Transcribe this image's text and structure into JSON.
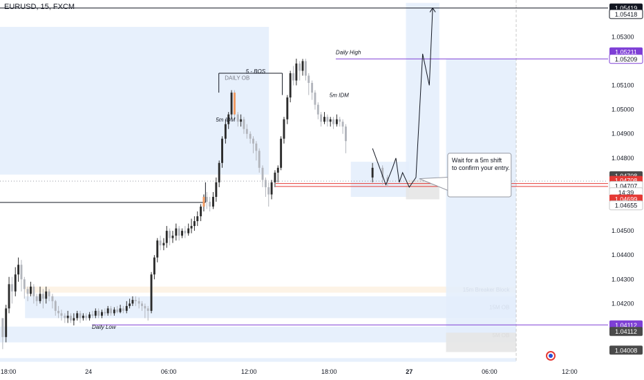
{
  "header": {
    "symbol_line": "EURUSD, 15, FXCM"
  },
  "colors": {
    "up": "#2b2b2b",
    "down": "#b2b5bc",
    "orange": "#f39a60",
    "zone_blue": "#e3edfb",
    "zone_orange": "#fdf1e2",
    "zone_grey": "#e6e6e6",
    "purple": "#7e3fd6",
    "red": "#e53935",
    "black": "#131722",
    "grey_text": "#787b86"
  },
  "chart_data": {
    "type": "candlestick",
    "x_axis": {
      "ticks": [
        {
          "label": "18:00",
          "t": -24
        },
        {
          "label": "24",
          "t": 0
        },
        {
          "label": "06:00",
          "t": 24
        },
        {
          "label": "12:00",
          "t": 48
        },
        {
          "label": "18:00",
          "t": 72
        },
        {
          "label": "27",
          "t": 96
        },
        {
          "label": "06:00",
          "t": 120
        },
        {
          "label": "12:00",
          "t": 144
        }
      ],
      "range": [
        -26.5,
        155.5
      ],
      "bar_interval": "15"
    },
    "y_axis": {
      "ticks": [
        "1.04000",
        "1.04100",
        "1.04200",
        "1.04300",
        "1.04400",
        "1.04500",
        "1.04600",
        "1.04700",
        "1.04800",
        "1.04900",
        "1.05000",
        "1.05100",
        "1.05200",
        "1.05300",
        "1.05400"
      ],
      "range": [
        1.03956,
        1.05452
      ]
    },
    "price_tags": [
      {
        "label": "1.05419",
        "price": 1.05419,
        "bg": "#131722",
        "fg": "#ffffff"
      },
      {
        "label": "1.05418",
        "price": 1.05394,
        "bg": "#ffffff",
        "fg": "#131722",
        "border": "#131722"
      },
      {
        "label": "1.05211",
        "price": 1.05238,
        "bg": "#7e3fd6",
        "fg": "#ffffff"
      },
      {
        "label": "1.05209",
        "price": 1.05209,
        "bg": "#ffffff",
        "fg": "#131722",
        "border": "#7e3fd6"
      },
      {
        "label": "1.04708",
        "price": 1.04727,
        "bg": "#4a4a4a",
        "fg": "#ffffff"
      },
      {
        "label": "1.04708",
        "price": 1.04708,
        "bg": "#e53935",
        "fg": "#ffffff"
      },
      {
        "label": "1.04707",
        "price": 1.04685,
        "bg": "#ffffff",
        "fg": "#131722",
        "border": "#c8c8c8"
      },
      {
        "label": "14:39",
        "price": 1.04659,
        "bg": "#ffffff",
        "fg": "#131722",
        "border": "#c8c8c8"
      },
      {
        "label": "1.04699",
        "price": 1.04631,
        "bg": "#e53935",
        "fg": "#ffffff"
      },
      {
        "label": "1.04655",
        "price": 1.04605,
        "bg": "#ffffff",
        "fg": "#131722",
        "border": "#c8c8c8"
      },
      {
        "label": "1.04112",
        "price": 1.04112,
        "bg": "#7e3fd6",
        "fg": "#ffffff"
      },
      {
        "label": "1.04112",
        "price": 1.04085,
        "bg": "#4a4a4a",
        "fg": "#ffffff"
      },
      {
        "label": "1.04008",
        "price": 1.04008,
        "bg": "#4a4a4a",
        "fg": "#ffffff"
      }
    ],
    "zones": [
      {
        "name": "daily-ob-zone",
        "t0": -26.5,
        "t1": 54,
        "p_top": 1.05341,
        "p_bot": 1.04732,
        "color": "zone_blue",
        "label": "DAILY OB",
        "label_t": 44.5,
        "label_p": 1.05131
      },
      {
        "name": "15m-breaker-block-zone",
        "t0": -19,
        "t1": 128,
        "p_top": 1.0427,
        "p_bot": 1.04245,
        "color": "zone_orange",
        "label": "15m Breaker Block",
        "label_t": 126,
        "label_p": 1.04258
      },
      {
        "name": "15m-ob-zone",
        "t0": -19,
        "t1": 128,
        "p_top": 1.0423,
        "p_bot": 1.0414,
        "color": "zone_blue",
        "label": "15M OB",
        "label_t": 126,
        "label_p": 1.04185
      },
      {
        "name": "5m-ob-zone",
        "t0": -26.5,
        "t1": 128,
        "p_top": 1.04105,
        "p_bot": 1.0404,
        "color": "zone_blue",
        "label": "5M OB",
        "label_t": 126,
        "label_p": 1.0407
      },
      {
        "name": "entry-range-zone",
        "t0": 78.5,
        "t1": 96,
        "p_top": 1.04785,
        "p_bot": 1.0464,
        "color": "zone_blue"
      },
      {
        "name": "long-target-zone",
        "t0": 95,
        "t1": 105,
        "p_top": 1.0544,
        "p_bot": 1.0471,
        "color": "zone_blue"
      },
      {
        "name": "long-stop-zone",
        "t0": 95,
        "t1": 105,
        "p_top": 1.0471,
        "p_bot": 1.0463,
        "color": "zone_grey"
      },
      {
        "name": "projection-zone",
        "t0": 107,
        "t1": 128,
        "p_top": 1.05209,
        "p_bot": 1.0408,
        "color": "zone_blue"
      },
      {
        "name": "projection-lower-zone",
        "t0": 107,
        "t1": 128,
        "p_top": 1.0408,
        "p_bot": 1.04,
        "color": "zone_grey"
      },
      {
        "name": "bottom-strip-zone",
        "t0": -26.5,
        "t1": 128,
        "p_top": 1.03975,
        "p_bot": 1.0396,
        "color": "zone_blue"
      }
    ],
    "levels": [
      {
        "name": "daily-high-line",
        "t0": 74,
        "t1": 155.5,
        "price": 1.05209,
        "color": "purple",
        "label": "Daily High",
        "label_t": 74,
        "label_p": 1.05228
      },
      {
        "name": "daily-low-line",
        "t0": 1,
        "t1": 155.5,
        "price": 1.04112,
        "color": "purple",
        "label": "Daily Low",
        "label_t": 1,
        "label_p": 1.04095
      },
      {
        "name": "top-level-line",
        "t0": -26.5,
        "t1": 155.5,
        "price": 1.05419,
        "color": "black"
      },
      {
        "name": "structure-line",
        "t0": -26.5,
        "t1": 35,
        "price": 1.04617,
        "color": "black"
      },
      {
        "name": "bos-line",
        "t0": 39,
        "t1": 58,
        "price": 1.0515,
        "color": "black",
        "label": "5 - BOS",
        "label_t": 50,
        "label_p": 1.0515
      },
      {
        "name": "red-line-upper",
        "t0": 56,
        "t1": 155.5,
        "price": 1.04695,
        "color": "red"
      },
      {
        "name": "red-line-lower",
        "t0": 56,
        "t1": 155.5,
        "price": 1.04683,
        "color": "red"
      },
      {
        "name": "current-price-line",
        "t0": -26.5,
        "t1": 155.5,
        "price": 1.04705,
        "color": "dotted"
      }
    ],
    "annotations": [
      {
        "name": "5m-idm-left-label",
        "text": "5m IDM",
        "t": 41,
        "p": 1.0495
      },
      {
        "name": "5m-idm-right-label",
        "text": "5m IDM",
        "t": 75,
        "p": 1.05052
      }
    ],
    "callout": {
      "lines": [
        "Wait for a 5m shift",
        "to confirm your entry."
      ],
      "t0": 107.5,
      "t1": 126.5,
      "p_top": 1.0482,
      "p_bot": 1.0464,
      "pointer_t": 99,
      "pointer_p": 1.04715
    },
    "projection_path": [
      [
        85,
        1.0484
      ],
      [
        89,
        1.0469
      ],
      [
        91,
        1.0476
      ],
      [
        92,
        1.048
      ],
      [
        93,
        1.047
      ],
      [
        94,
        1.0474
      ],
      [
        96,
        1.0468
      ],
      [
        98,
        1.0472
      ],
      [
        100,
        1.0523
      ],
      [
        102,
        1.051
      ],
      [
        103,
        1.05419
      ]
    ],
    "candles": [
      [
        -25.7,
        1.0414,
        1.04062,
        1.0414,
        1.04012
      ],
      [
        -24.7,
        1.04062,
        1.0418,
        1.04195,
        1.0404
      ],
      [
        -23.8,
        1.0418,
        1.0428,
        1.0431,
        1.0416
      ],
      [
        -22.9,
        1.0428,
        1.0425,
        1.0431,
        1.042
      ],
      [
        -21.9,
        1.0425,
        1.0432,
        1.0435,
        1.0423
      ],
      [
        -21.0,
        1.0432,
        1.0436,
        1.0439,
        1.0429
      ],
      [
        -20.1,
        1.0436,
        1.043,
        1.0438,
        1.0425
      ],
      [
        -19.2,
        1.043,
        1.0426,
        1.0431,
        1.0422
      ],
      [
        -18.2,
        1.0426,
        1.0424,
        1.0427,
        1.0421
      ],
      [
        -17.3,
        1.0424,
        1.0427,
        1.0429,
        1.0423
      ],
      [
        -16.4,
        1.0427,
        1.0423,
        1.0428,
        1.042
      ],
      [
        -15.5,
        1.0423,
        1.0421,
        1.0424,
        1.0419
      ],
      [
        -14.5,
        1.0421,
        1.0424,
        1.0427,
        1.042
      ],
      [
        -13.6,
        1.0424,
        1.0422,
        1.0426,
        1.0418
      ],
      [
        -12.7,
        1.0422,
        1.0425,
        1.0427,
        1.042
      ],
      [
        -11.8,
        1.0425,
        1.0423,
        1.0426,
        1.0421
      ],
      [
        -10.8,
        1.0423,
        1.0421,
        1.0424,
        1.0418
      ],
      [
        -9.9,
        1.0421,
        1.0417,
        1.04215,
        1.0415
      ],
      [
        -9.0,
        1.0417,
        1.0416,
        1.0419,
        1.0414
      ],
      [
        -8.1,
        1.0416,
        1.0415,
        1.04175,
        1.0413
      ],
      [
        -7.1,
        1.0415,
        1.0414,
        1.0416,
        1.0412
      ],
      [
        -6.2,
        1.0414,
        1.0415,
        1.0417,
        1.0412
      ],
      [
        -5.3,
        1.0415,
        1.0413,
        1.0416,
        1.0412
      ],
      [
        -4.4,
        1.0413,
        1.0414,
        1.0416,
        1.0411
      ],
      [
        -3.4,
        1.0414,
        1.0416,
        1.0417,
        1.0413
      ],
      [
        -2.5,
        1.0416,
        1.0414,
        1.0417,
        1.0412
      ],
      [
        -1.6,
        1.0414,
        1.0415,
        1.0416,
        1.0413
      ],
      [
        -0.7,
        1.0415,
        1.0414,
        1.0416,
        1.0413
      ],
      [
        0.3,
        1.0414,
        1.04155,
        1.04165,
        1.0413
      ],
      [
        1.2,
        1.04155,
        1.0415,
        1.0417,
        1.0414
      ],
      [
        2.1,
        1.0415,
        1.0417,
        1.0418,
        1.0414
      ],
      [
        3.0,
        1.0417,
        1.0415,
        1.0418,
        1.0414
      ],
      [
        4.0,
        1.0415,
        1.04165,
        1.04175,
        1.0414
      ],
      [
        4.9,
        1.04165,
        1.0416,
        1.0418,
        1.0415
      ],
      [
        5.8,
        1.0416,
        1.0418,
        1.0419,
        1.0415
      ],
      [
        6.7,
        1.0418,
        1.0416,
        1.0419,
        1.0415
      ],
      [
        7.7,
        1.0416,
        1.04175,
        1.04185,
        1.0415
      ],
      [
        8.6,
        1.04175,
        1.04165,
        1.0419,
        1.0416
      ],
      [
        9.5,
        1.04165,
        1.0418,
        1.04195,
        1.0416
      ],
      [
        10.4,
        1.0418,
        1.0417,
        1.0419,
        1.0416
      ],
      [
        11.4,
        1.0417,
        1.0419,
        1.0421,
        1.0416
      ],
      [
        12.3,
        1.0419,
        1.042,
        1.0422,
        1.0418
      ],
      [
        13.2,
        1.042,
        1.04215,
        1.0423,
        1.0419
      ],
      [
        14.1,
        1.04215,
        1.0421,
        1.0423,
        1.0419
      ],
      [
        15.1,
        1.0421,
        1.042,
        1.04225,
        1.0418
      ],
      [
        16.0,
        1.042,
        1.0419,
        1.0421,
        1.0417
      ],
      [
        16.9,
        1.0419,
        1.0418,
        1.042,
        1.0414
      ],
      [
        17.8,
        1.0418,
        1.0417,
        1.0419,
        1.0413
      ],
      [
        18.8,
        1.0417,
        1.0432,
        1.0433,
        1.0416
      ],
      [
        19.7,
        1.0432,
        1.0439,
        1.044,
        1.043
      ],
      [
        20.6,
        1.0439,
        1.0446,
        1.0447,
        1.0437
      ],
      [
        21.5,
        1.0446,
        1.0444,
        1.0448,
        1.0442
      ],
      [
        22.5,
        1.0444,
        1.0445,
        1.0447,
        1.0442
      ],
      [
        23.4,
        1.0445,
        1.045,
        1.0452,
        1.0443
      ],
      [
        24.3,
        1.045,
        1.0447,
        1.0451,
        1.0444
      ],
      [
        25.2,
        1.0447,
        1.0448,
        1.045,
        1.0445
      ],
      [
        26.2,
        1.0448,
        1.0451,
        1.0453,
        1.0446
      ],
      [
        27.1,
        1.0451,
        1.0448,
        1.0452,
        1.0446
      ],
      [
        28.0,
        1.0448,
        1.045,
        1.0451,
        1.0447
      ],
      [
        28.9,
        1.045,
        1.0449,
        1.0452,
        1.0447
      ],
      [
        29.9,
        1.0449,
        1.0451,
        1.0453,
        1.0448
      ],
      [
        30.8,
        1.0451,
        1.0452,
        1.0455,
        1.0449
      ],
      [
        31.7,
        1.0452,
        1.0454,
        1.0456,
        1.045
      ],
      [
        32.6,
        1.0454,
        1.0456,
        1.0458,
        1.0452
      ],
      [
        33.6,
        1.0456,
        1.046,
        1.0461,
        1.0454
      ],
      [
        34.5,
        1.046,
        1.0464,
        1.0465,
        1.0458
      ],
      [
        35.4,
        1.0464,
        1.0462,
        1.0466,
        1.0459
      ],
      [
        36.3,
        1.0462,
        1.046,
        1.0464,
        1.0458
      ],
      [
        37.3,
        1.046,
        1.0464,
        1.0466,
        1.0459
      ],
      [
        38.2,
        1.0464,
        1.047,
        1.0472,
        1.0462
      ],
      [
        39.1,
        1.047,
        1.0478,
        1.0479,
        1.0468
      ],
      [
        40.0,
        1.0478,
        1.0488,
        1.0489,
        1.0476
      ],
      [
        41.0,
        1.0488,
        1.0494,
        1.0496,
        1.0486
      ],
      [
        41.9,
        1.0494,
        1.0498,
        1.0499,
        1.0492
      ],
      [
        42.8,
        1.0498,
        1.0507,
        1.0508,
        1.0496
      ],
      [
        43.7,
        1.0507,
        1.0498,
        1.0508,
        1.0496
      ],
      [
        44.7,
        1.0498,
        1.0495,
        1.0499,
        1.0493
      ],
      [
        45.6,
        1.0495,
        1.0496,
        1.0498,
        1.0493
      ],
      [
        46.5,
        1.0496,
        1.0492,
        1.0497,
        1.049
      ],
      [
        47.4,
        1.0492,
        1.049,
        1.0494,
        1.0488
      ],
      [
        48.4,
        1.049,
        1.0488,
        1.0491,
        1.0486
      ],
      [
        49.3,
        1.0488,
        1.0486,
        1.0489,
        1.0482
      ],
      [
        50.2,
        1.0486,
        1.0483,
        1.0487,
        1.0479
      ],
      [
        51.1,
        1.0483,
        1.0476,
        1.0484,
        1.0474
      ],
      [
        52.1,
        1.0476,
        1.0471,
        1.0477,
        1.0468
      ],
      [
        53.0,
        1.0471,
        1.0468,
        1.0472,
        1.0464
      ],
      [
        53.9,
        1.0468,
        1.0465,
        1.047,
        1.046
      ],
      [
        54.8,
        1.0465,
        1.047,
        1.0471,
        1.0463
      ],
      [
        55.8,
        1.047,
        1.0474,
        1.0475,
        1.0468
      ],
      [
        56.7,
        1.0474,
        1.0476,
        1.0477,
        1.047
      ],
      [
        57.6,
        1.0476,
        1.0488,
        1.0489,
        1.0475
      ],
      [
        58.5,
        1.0488,
        1.0496,
        1.0497,
        1.0486
      ],
      [
        59.5,
        1.0496,
        1.0505,
        1.0506,
        1.0494
      ],
      [
        60.4,
        1.0505,
        1.0515,
        1.0516,
        1.0503
      ],
      [
        61.3,
        1.0515,
        1.0512,
        1.0518,
        1.051
      ],
      [
        62.2,
        1.0512,
        1.0519,
        1.0521,
        1.051
      ],
      [
        63.2,
        1.0519,
        1.0516,
        1.052,
        1.0512
      ],
      [
        64.1,
        1.0516,
        1.052,
        1.05209,
        1.0514
      ],
      [
        65.0,
        1.052,
        1.0514,
        1.0521,
        1.0512
      ],
      [
        65.9,
        1.0514,
        1.0511,
        1.0515,
        1.0506
      ],
      [
        66.9,
        1.0511,
        1.0507,
        1.0512,
        1.0504
      ],
      [
        67.8,
        1.0507,
        1.0502,
        1.0508,
        1.05
      ],
      [
        68.7,
        1.0502,
        1.0498,
        1.0503,
        1.0496
      ],
      [
        69.6,
        1.0498,
        1.0495,
        1.0499,
        1.0493
      ],
      [
        70.6,
        1.0495,
        1.0497,
        1.0499,
        1.0494
      ],
      [
        71.5,
        1.0497,
        1.0495,
        1.0498,
        1.0493
      ],
      [
        72.4,
        1.0495,
        1.0496,
        1.0497,
        1.0493
      ],
      [
        73.3,
        1.0496,
        1.0494,
        1.0497,
        1.0492
      ],
      [
        74.3,
        1.0494,
        1.0496,
        1.0498,
        1.0493
      ],
      [
        75.2,
        1.0496,
        1.0495,
        1.0497,
        1.0493
      ],
      [
        76.1,
        1.0495,
        1.0493,
        1.0496,
        1.049
      ],
      [
        77.0,
        1.0493,
        1.0487,
        1.0494,
        1.0482
      ],
      [
        85.0,
        1.0472,
        1.0476,
        1.0478,
        1.047
      ],
      [
        88.0,
        1.0476,
        1.0472,
        1.0477,
        1.0469
      ],
      [
        89.5,
        1.0472,
        1.04705,
        1.0473,
        1.0468
      ]
    ]
  }
}
